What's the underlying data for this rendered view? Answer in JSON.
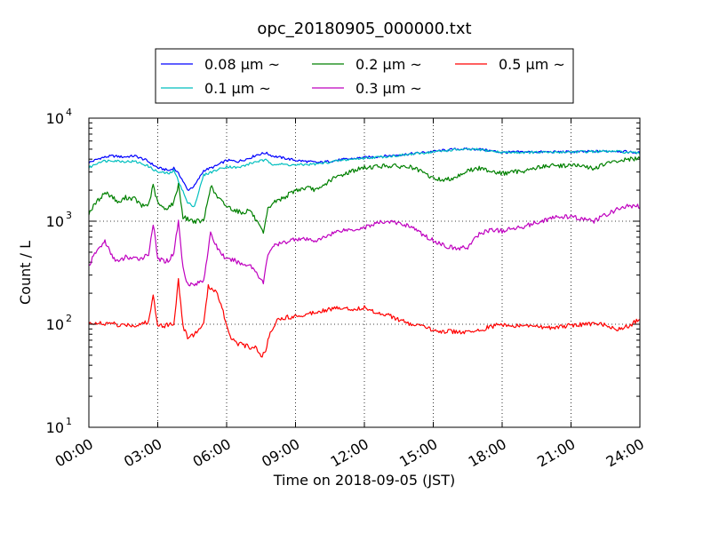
{
  "chart_data": {
    "type": "line",
    "title": "opc_20180905_000000.txt",
    "xlabel": "Time on 2018-09-05 (JST)",
    "ylabel": "Count / L",
    "x_unit": "hours",
    "xlim": [
      0,
      24
    ],
    "ylim": [
      10,
      10000
    ],
    "yscale": "log",
    "grid": true,
    "legend_position": "top-center-outside",
    "x_ticks": [
      {
        "value": 0,
        "label": "00:00"
      },
      {
        "value": 3,
        "label": "03:00"
      },
      {
        "value": 6,
        "label": "06:00"
      },
      {
        "value": 9,
        "label": "09:00"
      },
      {
        "value": 12,
        "label": "12:00"
      },
      {
        "value": 15,
        "label": "15:00"
      },
      {
        "value": 18,
        "label": "18:00"
      },
      {
        "value": 21,
        "label": "21:00"
      },
      {
        "value": 24,
        "label": "24:00"
      }
    ],
    "y_ticks": [
      {
        "value": 10,
        "base": "10",
        "exp": "1"
      },
      {
        "value": 100,
        "base": "10",
        "exp": "2"
      },
      {
        "value": 1000,
        "base": "10",
        "exp": "3"
      },
      {
        "value": 10000,
        "base": "10",
        "exp": "4"
      }
    ],
    "series": [
      {
        "name": "0.08 μm ~",
        "color": "#0000ff",
        "x": [
          0,
          0.5,
          1,
          1.5,
          2,
          2.5,
          3,
          3.5,
          3.7,
          4,
          4.3,
          4.6,
          5,
          5.5,
          6,
          6.5,
          7,
          7.3,
          7.7,
          8,
          9,
          10,
          11,
          12,
          13,
          14,
          15,
          16,
          17,
          18,
          19,
          20,
          21,
          22,
          23,
          24
        ],
        "y": [
          3700,
          4100,
          4300,
          4200,
          4300,
          3900,
          3300,
          3100,
          3300,
          2700,
          2000,
          2200,
          3100,
          3400,
          3900,
          3800,
          4100,
          4400,
          4600,
          4300,
          3900,
          3700,
          3950,
          4150,
          4300,
          4500,
          4750,
          5000,
          5000,
          4650,
          4700,
          4700,
          4700,
          4750,
          4800,
          4600
        ]
      },
      {
        "name": "0.1 μm ~",
        "color": "#00bfbf",
        "x": [
          0,
          0.5,
          1,
          1.5,
          2,
          2.5,
          3,
          3.5,
          3.7,
          4,
          4.3,
          4.6,
          5,
          5.5,
          6,
          6.5,
          7,
          7.3,
          7.7,
          8,
          9,
          10,
          11,
          12,
          13,
          14,
          15,
          16,
          17,
          18,
          19,
          20,
          21,
          22,
          23,
          24
        ],
        "y": [
          3300,
          3800,
          3900,
          3800,
          3800,
          3500,
          3000,
          2900,
          3100,
          2200,
          1500,
          1400,
          2800,
          3100,
          3400,
          3300,
          3600,
          3800,
          3900,
          3600,
          3500,
          3600,
          3900,
          4100,
          4250,
          4450,
          4700,
          4950,
          4950,
          4650,
          4650,
          4650,
          4700,
          4750,
          4750,
          4550
        ]
      },
      {
        "name": "0.2 μm ~",
        "color": "#008000",
        "x": [
          0,
          0.3,
          0.7,
          1,
          1.3,
          1.6,
          2,
          2.3,
          2.6,
          2.8,
          3,
          3.3,
          3.5,
          3.7,
          3.9,
          4.1,
          4.3,
          4.6,
          5,
          5.3,
          5.6,
          6,
          6.3,
          6.7,
          7,
          7.3,
          7.6,
          7.8,
          8,
          8.5,
          9,
          9.5,
          10,
          10.5,
          11,
          11.5,
          12,
          12.5,
          13,
          14,
          14.5,
          15,
          15.5,
          16,
          16.5,
          17,
          17.5,
          18,
          18.5,
          19,
          19.5,
          20,
          20.5,
          21,
          21.5,
          22,
          22.5,
          23,
          23.5,
          24
        ],
        "y": [
          1200,
          1500,
          1900,
          1750,
          1500,
          1700,
          1650,
          1400,
          1450,
          2200,
          1500,
          1300,
          1400,
          1500,
          2300,
          1100,
          1050,
          1000,
          1000,
          2200,
          1700,
          1400,
          1300,
          1200,
          1300,
          1000,
          750,
          1300,
          1500,
          1700,
          2000,
          2100,
          2000,
          2500,
          2800,
          3100,
          3300,
          3400,
          3450,
          3350,
          3000,
          2600,
          2500,
          2700,
          3100,
          3250,
          3100,
          2900,
          3000,
          3100,
          3300,
          3450,
          3450,
          3500,
          3400,
          3250,
          3600,
          3800,
          4000,
          4000
        ]
      },
      {
        "name": "0.3 μm ~",
        "color": "#bf00bf",
        "x": [
          0,
          0.3,
          0.7,
          1,
          1.3,
          1.6,
          2,
          2.3,
          2.6,
          2.8,
          3,
          3.3,
          3.5,
          3.7,
          3.9,
          4.1,
          4.3,
          4.6,
          5,
          5.3,
          5.6,
          6,
          6.3,
          6.7,
          7,
          7.3,
          7.6,
          7.8,
          8,
          8.5,
          9,
          9.5,
          10,
          10.5,
          11,
          11.5,
          12,
          12.5,
          13,
          14,
          14.5,
          15,
          15.5,
          16,
          16.5,
          17,
          17.5,
          18,
          18.5,
          19,
          19.5,
          20,
          20.5,
          21,
          21.5,
          22,
          22.5,
          23,
          23.5,
          24
        ],
        "y": [
          370,
          500,
          640,
          460,
          400,
          450,
          430,
          440,
          480,
          950,
          430,
          410,
          420,
          500,
          1000,
          350,
          250,
          240,
          270,
          750,
          550,
          420,
          420,
          380,
          380,
          320,
          250,
          480,
          570,
          620,
          680,
          660,
          650,
          750,
          820,
          830,
          870,
          950,
          1000,
          900,
          750,
          650,
          580,
          540,
          560,
          750,
          830,
          800,
          850,
          900,
          970,
          1050,
          1100,
          1100,
          1050,
          1000,
          1150,
          1300,
          1400,
          1400
        ]
      },
      {
        "name": "0.5 μm ~",
        "color": "#ff0000",
        "x": [
          0,
          0.3,
          0.7,
          1,
          1.3,
          1.6,
          2,
          2.3,
          2.6,
          2.8,
          3,
          3.3,
          3.5,
          3.7,
          3.9,
          4.1,
          4.3,
          4.6,
          5,
          5.2,
          5.5,
          5.8,
          6,
          6.2,
          6.5,
          7,
          7.3,
          7.5,
          7.7,
          7.9,
          8.2,
          8.5,
          9,
          9.5,
          10,
          10.5,
          11,
          11.5,
          12,
          12.5,
          13,
          13.5,
          14,
          14.5,
          15,
          15.5,
          16,
          16.5,
          17,
          17.5,
          18,
          18.5,
          19,
          19.5,
          20,
          20.5,
          21,
          21.5,
          22,
          22.5,
          23,
          23.5,
          24
        ],
        "y": [
          100,
          105,
          98,
          105,
          95,
          100,
          97,
          102,
          105,
          190,
          100,
          97,
          100,
          100,
          270,
          95,
          75,
          80,
          100,
          230,
          215,
          150,
          95,
          75,
          65,
          60,
          60,
          48,
          55,
          85,
          110,
          115,
          120,
          125,
          135,
          140,
          145,
          140,
          145,
          130,
          125,
          110,
          100,
          95,
          88,
          85,
          85,
          83,
          87,
          95,
          100,
          95,
          97,
          95,
          93,
          95,
          97,
          100,
          100,
          100,
          90,
          95,
          115
        ]
      }
    ]
  }
}
